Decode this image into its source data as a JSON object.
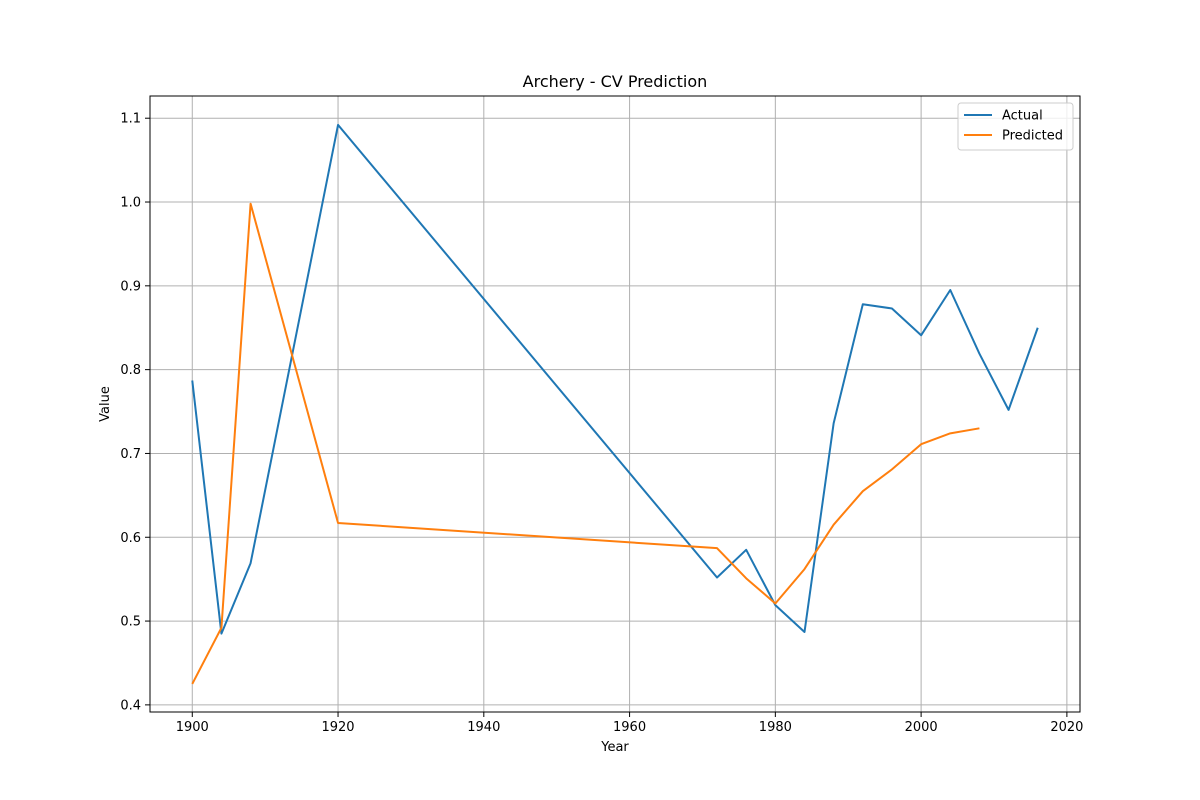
{
  "chart_data": {
    "type": "line",
    "title": "Archery - CV Prediction",
    "xlabel": "Year",
    "ylabel": "Value",
    "xlim": [
      1894.2,
      2021.8
    ],
    "ylim": [
      0.3915,
      1.1265
    ],
    "xticks": [
      1900,
      1920,
      1940,
      1960,
      1980,
      2000,
      2020
    ],
    "yticks": [
      0.4,
      0.5,
      0.6,
      0.7,
      0.8,
      0.9,
      1.0,
      1.1
    ],
    "ytick_labels": [
      "0.4",
      "0.5",
      "0.6",
      "0.7",
      "0.8",
      "0.9",
      "1.0",
      "1.1"
    ],
    "grid": true,
    "legend_position": "top-right",
    "series": [
      {
        "name": "Actual",
        "color": "#1f77b4",
        "x": [
          1900,
          1904,
          1908,
          1920,
          1972,
          1976,
          1980,
          1984,
          1988,
          1992,
          1996,
          2000,
          2004,
          2008,
          2012,
          2016
        ],
        "y": [
          0.787,
          0.485,
          0.569,
          1.092,
          0.552,
          0.585,
          0.519,
          0.487,
          0.736,
          0.878,
          0.873,
          0.841,
          0.895,
          0.819,
          0.752,
          0.85
        ]
      },
      {
        "name": "Predicted",
        "color": "#ff7f0e",
        "x": [
          1900,
          1904,
          1908,
          1920,
          1972,
          1976,
          1980,
          1984,
          1988,
          1992,
          1996,
          2000,
          2004,
          2008
        ],
        "y": [
          0.425,
          0.492,
          0.998,
          0.617,
          0.587,
          0.551,
          0.521,
          0.562,
          0.615,
          0.655,
          0.681,
          0.711,
          0.724,
          0.73
        ]
      }
    ]
  }
}
